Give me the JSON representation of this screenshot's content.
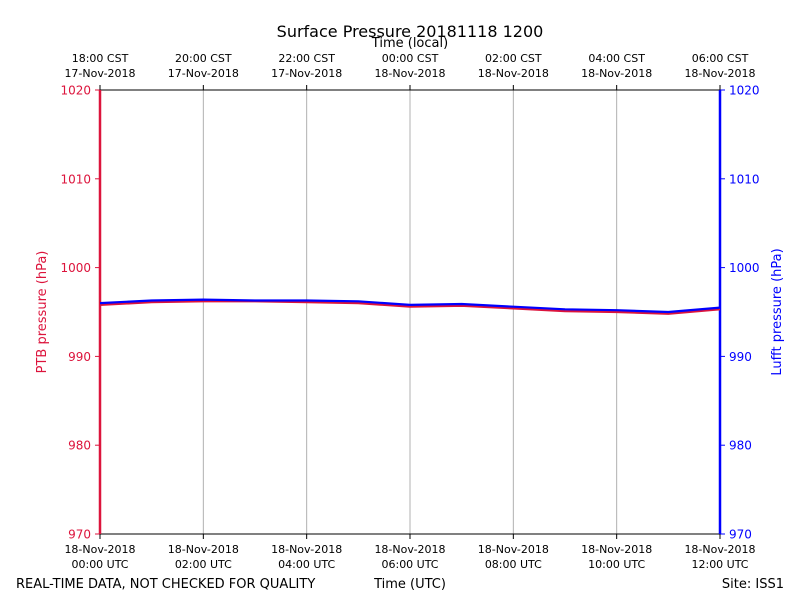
{
  "chart_data": {
    "type": "line",
    "title": "Surface Pressure 20181118 1200",
    "top_axis_label": "Time (local)",
    "xlabel": "Time (UTC)",
    "ylabel_left": "PTB pressure (hPa)",
    "ylabel_right": "Lufft pressure (hPa)",
    "ylim": [
      970,
      1020
    ],
    "xlim": [
      0,
      12
    ],
    "grid": "vertical",
    "yticks": [
      "970",
      "980",
      "990",
      "1000",
      "1010",
      "1020"
    ],
    "bottom_ticks": [
      {
        "line1": "18-Nov-2018",
        "line2": "00:00 UTC"
      },
      {
        "line1": "18-Nov-2018",
        "line2": "02:00 UTC"
      },
      {
        "line1": "18-Nov-2018",
        "line2": "04:00 UTC"
      },
      {
        "line1": "18-Nov-2018",
        "line2": "06:00 UTC"
      },
      {
        "line1": "18-Nov-2018",
        "line2": "08:00 UTC"
      },
      {
        "line1": "18-Nov-2018",
        "line2": "10:00 UTC"
      },
      {
        "line1": "18-Nov-2018",
        "line2": "12:00 UTC"
      }
    ],
    "top_ticks": [
      {
        "line1": "18:00 CST",
        "line2": "17-Nov-2018"
      },
      {
        "line1": "20:00 CST",
        "line2": "17-Nov-2018"
      },
      {
        "line1": "22:00 CST",
        "line2": "17-Nov-2018"
      },
      {
        "line1": "00:00 CST",
        "line2": "18-Nov-2018"
      },
      {
        "line1": "02:00 CST",
        "line2": "18-Nov-2018"
      },
      {
        "line1": "04:00 CST",
        "line2": "18-Nov-2018"
      },
      {
        "line1": "06:00 CST",
        "line2": "18-Nov-2018"
      }
    ],
    "x_hours": [
      0,
      1,
      2,
      3,
      4,
      5,
      6,
      7,
      8,
      9,
      10,
      11,
      12
    ],
    "series": [
      {
        "color": "#dc143c",
        "values": [
          995.8,
          996.1,
          996.2,
          996.2,
          996.1,
          996.0,
          995.6,
          995.7,
          995.4,
          995.1,
          995.0,
          994.8,
          995.3
        ]
      },
      {
        "color": "#0000ff",
        "values": [
          996.0,
          996.3,
          996.4,
          996.3,
          996.3,
          996.2,
          995.8,
          995.9,
          995.6,
          995.3,
          995.2,
          995.0,
          995.5
        ]
      }
    ],
    "colors": {
      "left_axis": "#dc143c",
      "right_axis": "#0000ff",
      "grid": "#b0b0b0"
    }
  },
  "footer": {
    "left": "REAL-TIME DATA, NOT CHECKED FOR QUALITY",
    "center": "Time (UTC)",
    "right": "Site: ISS1"
  }
}
